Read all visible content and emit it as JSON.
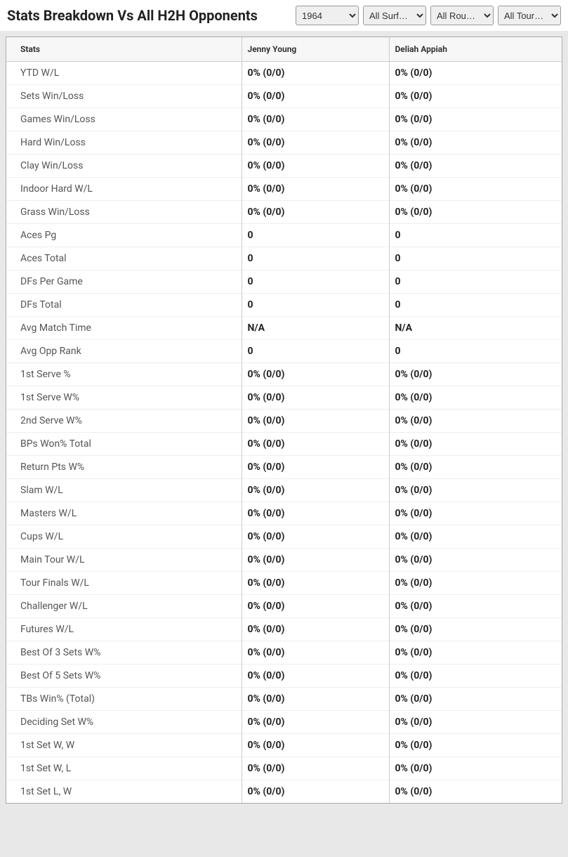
{
  "header": {
    "title": "Stats Breakdown Vs All H2H Opponents"
  },
  "filters": {
    "year": "1964",
    "surface": "All Surf…",
    "round": "All Rou…",
    "tour": "All Tour…"
  },
  "table": {
    "columns": [
      "Stats",
      "Jenny Young",
      "Deliah Appiah"
    ],
    "rows": [
      {
        "stat": "YTD W/L",
        "p1": "0% (0/0)",
        "p2": "0% (0/0)"
      },
      {
        "stat": "Sets Win/Loss",
        "p1": "0% (0/0)",
        "p2": "0% (0/0)"
      },
      {
        "stat": "Games Win/Loss",
        "p1": "0% (0/0)",
        "p2": "0% (0/0)"
      },
      {
        "stat": "Hard Win/Loss",
        "p1": "0% (0/0)",
        "p2": "0% (0/0)"
      },
      {
        "stat": "Clay Win/Loss",
        "p1": "0% (0/0)",
        "p2": "0% (0/0)"
      },
      {
        "stat": "Indoor Hard W/L",
        "p1": "0% (0/0)",
        "p2": "0% (0/0)"
      },
      {
        "stat": "Grass Win/Loss",
        "p1": "0% (0/0)",
        "p2": "0% (0/0)"
      },
      {
        "stat": "Aces Pg",
        "p1": "0",
        "p2": "0"
      },
      {
        "stat": "Aces Total",
        "p1": "0",
        "p2": "0"
      },
      {
        "stat": "DFs Per Game",
        "p1": "0",
        "p2": "0"
      },
      {
        "stat": "DFs Total",
        "p1": "0",
        "p2": "0"
      },
      {
        "stat": "Avg Match Time",
        "p1": "N/A",
        "p2": "N/A"
      },
      {
        "stat": "Avg Opp Rank",
        "p1": "0",
        "p2": "0"
      },
      {
        "stat": "1st Serve %",
        "p1": "0% (0/0)",
        "p2": "0% (0/0)"
      },
      {
        "stat": "1st Serve W%",
        "p1": "0% (0/0)",
        "p2": "0% (0/0)"
      },
      {
        "stat": "2nd Serve W%",
        "p1": "0% (0/0)",
        "p2": "0% (0/0)"
      },
      {
        "stat": "BPs Won% Total",
        "p1": "0% (0/0)",
        "p2": "0% (0/0)"
      },
      {
        "stat": "Return Pts W%",
        "p1": "0% (0/0)",
        "p2": "0% (0/0)"
      },
      {
        "stat": "Slam W/L",
        "p1": "0% (0/0)",
        "p2": "0% (0/0)"
      },
      {
        "stat": "Masters W/L",
        "p1": "0% (0/0)",
        "p2": "0% (0/0)"
      },
      {
        "stat": "Cups W/L",
        "p1": "0% (0/0)",
        "p2": "0% (0/0)"
      },
      {
        "stat": "Main Tour W/L",
        "p1": "0% (0/0)",
        "p2": "0% (0/0)"
      },
      {
        "stat": "Tour Finals W/L",
        "p1": "0% (0/0)",
        "p2": "0% (0/0)"
      },
      {
        "stat": "Challenger W/L",
        "p1": "0% (0/0)",
        "p2": "0% (0/0)"
      },
      {
        "stat": "Futures W/L",
        "p1": "0% (0/0)",
        "p2": "0% (0/0)"
      },
      {
        "stat": "Best Of 3 Sets W%",
        "p1": "0% (0/0)",
        "p2": "0% (0/0)"
      },
      {
        "stat": "Best Of 5 Sets W%",
        "p1": "0% (0/0)",
        "p2": "0% (0/0)"
      },
      {
        "stat": "TBs Win% (Total)",
        "p1": "0% (0/0)",
        "p2": "0% (0/0)"
      },
      {
        "stat": "Deciding Set W%",
        "p1": "0% (0/0)",
        "p2": "0% (0/0)"
      },
      {
        "stat": "1st Set W, W",
        "p1": "0% (0/0)",
        "p2": "0% (0/0)"
      },
      {
        "stat": "1st Set W, L",
        "p1": "0% (0/0)",
        "p2": "0% (0/0)"
      },
      {
        "stat": "1st Set L, W",
        "p1": "0% (0/0)",
        "p2": "0% (0/0)"
      }
    ]
  }
}
